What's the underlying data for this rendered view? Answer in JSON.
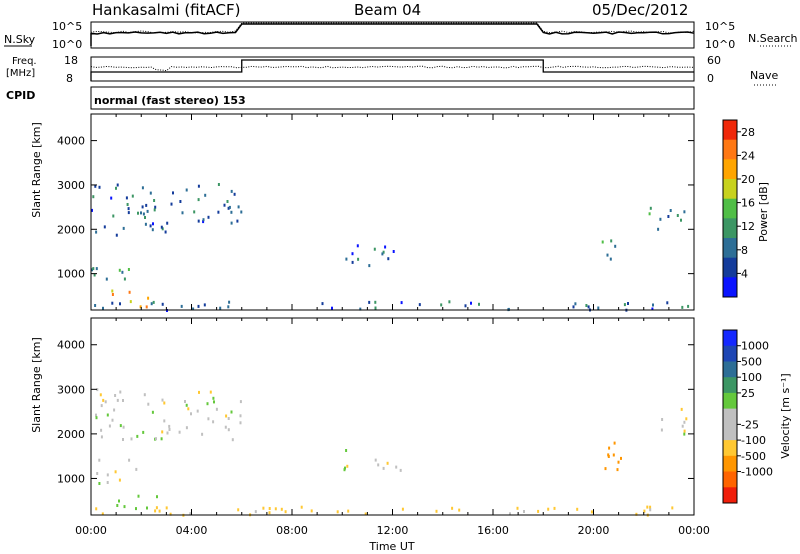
{
  "header": {
    "station": "Hankasalmi (fitACF)",
    "beam": "Beam 04",
    "date": "05/Dec/2012"
  },
  "noise_panel": {
    "left_label": "N.Sky",
    "right_label": "N.Search",
    "left_ticks": [
      "10^5",
      "10^0"
    ],
    "right_ticks": [
      "10^5",
      "10^0"
    ]
  },
  "freq_panel": {
    "left_label_1": "Freq.",
    "left_label_2": "[MHz]",
    "right_label": "Nave",
    "left_ticks": [
      "18",
      "8"
    ],
    "right_ticks": [
      "60",
      "0"
    ]
  },
  "cpid": {
    "label": "CPID",
    "mode": "normal (fast stereo) 153"
  },
  "axes": {
    "y_label": "Slant Range [km]",
    "y_ticks": [
      "4000",
      "3000",
      "2000",
      "1000"
    ],
    "x_label": "Time UT",
    "x_ticks": [
      "00:00",
      "04:00",
      "08:00",
      "12:00",
      "16:00",
      "20:00",
      "00:00"
    ]
  },
  "colors": {
    "power": [
      "#0a14ff",
      "#143c9b",
      "#2d6e96",
      "#3c9664",
      "#50be46",
      "#c8d21e",
      "#ffa500",
      "#ff7814",
      "#f0280a"
    ],
    "velocity": [
      "#f01e0a",
      "#ff6400",
      "#ff9600",
      "#ffc832",
      "#c0c0c0",
      "#c0c0c0",
      "#64c83c",
      "#3c9664",
      "#2d6e96",
      "#1e46b4",
      "#1428ff"
    ]
  },
  "chart_data": [
    {
      "type": "heatmap",
      "name": "power",
      "xlabel": "Time UT",
      "ylabel": "Slant Range [km]",
      "x_range_hours": [
        0,
        24
      ],
      "ylim": [
        180,
        4600
      ],
      "colorbar": {
        "label": "Power [dB]",
        "ticks": [
          "4",
          "8",
          "12",
          "16",
          "20",
          "24",
          "28"
        ],
        "range": [
          0,
          30
        ]
      },
      "echo_regions": [
        {
          "t": [
            0,
            6.0
          ],
          "r": [
            1900,
            3050
          ],
          "value": 8
        },
        {
          "t": [
            0,
            1.8
          ],
          "r": [
            850,
            1450
          ],
          "value": 10
        },
        {
          "t": [
            0.8,
            2.6
          ],
          "r": [
            250,
            650
          ],
          "value": 22
        },
        {
          "t": [
            9.8,
            12.3
          ],
          "r": [
            1200,
            1700
          ],
          "value": 7
        },
        {
          "t": [
            20.0,
            21.1
          ],
          "r": [
            1100,
            1900
          ],
          "value": 12
        },
        {
          "t": [
            22.0,
            24.0
          ],
          "r": [
            2000,
            2600
          ],
          "value": 9
        },
        {
          "t": [
            0,
            24
          ],
          "r": [
            200,
            400
          ],
          "value": 8
        }
      ]
    },
    {
      "type": "heatmap",
      "name": "velocity",
      "xlabel": "Time UT",
      "ylabel": "Slant Range [km]",
      "x_range_hours": [
        0,
        24
      ],
      "ylim": [
        180,
        4600
      ],
      "colorbar": {
        "label": "Velocity [m s⁻¹]",
        "ticks": [
          "1000",
          "500",
          "100",
          "25",
          "-25",
          "-100",
          "-500",
          "-1000"
        ]
      },
      "echo_regions": [
        {
          "t": [
            0,
            6.0
          ],
          "r": [
            1900,
            3050
          ],
          "value": 0
        },
        {
          "t": [
            0,
            1.8
          ],
          "r": [
            850,
            1450
          ],
          "value": 0
        },
        {
          "t": [
            0.8,
            2.6
          ],
          "r": [
            250,
            650
          ],
          "value": 60
        },
        {
          "t": [
            9.8,
            12.3
          ],
          "r": [
            1200,
            1700
          ],
          "value": 0
        },
        {
          "t": [
            20.0,
            21.1
          ],
          "r": [
            1100,
            1900
          ],
          "value": -150
        },
        {
          "t": [
            22.0,
            24.0
          ],
          "r": [
            2000,
            2600
          ],
          "value": 0
        },
        {
          "t": [
            0,
            24
          ],
          "r": [
            200,
            400
          ],
          "value": -60
        }
      ]
    }
  ]
}
